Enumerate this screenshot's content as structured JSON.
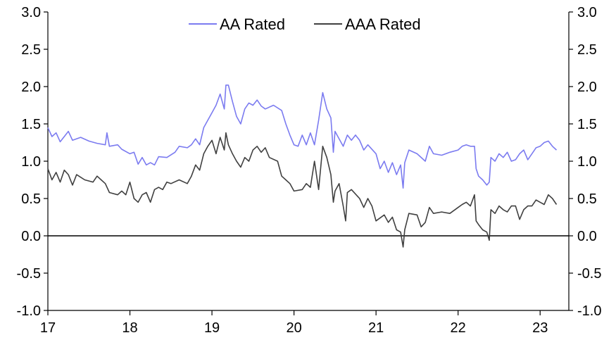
{
  "chart_data": {
    "type": "line",
    "title": "",
    "xlabel": "",
    "ylabel": "",
    "ylim": [
      -1.0,
      3.0
    ],
    "y_ticks": [
      "3.0",
      "2.5",
      "2.0",
      "1.5",
      "1.0",
      "0.5",
      "0.0",
      "-0.5",
      "-1.0"
    ],
    "y_tick_values": [
      3.0,
      2.5,
      2.0,
      1.5,
      1.0,
      0.5,
      0.0,
      -0.5,
      -1.0
    ],
    "x_ticks": [
      "17",
      "18",
      "19",
      "20",
      "21",
      "22",
      "23"
    ],
    "x_tick_values": [
      17,
      18,
      19,
      20,
      21,
      22,
      23
    ],
    "xlim": [
      17,
      23.35
    ],
    "y_axes": "left-and-right",
    "grid": false,
    "zero_line": true,
    "legend_position": "top",
    "series": [
      {
        "name": "AA Rated",
        "color": "#7b7bf0",
        "points": [
          [
            17.0,
            1.45
          ],
          [
            17.05,
            1.33
          ],
          [
            17.1,
            1.38
          ],
          [
            17.15,
            1.26
          ],
          [
            17.25,
            1.4
          ],
          [
            17.3,
            1.28
          ],
          [
            17.4,
            1.32
          ],
          [
            17.5,
            1.27
          ],
          [
            17.6,
            1.24
          ],
          [
            17.7,
            1.22
          ],
          [
            17.72,
            1.38
          ],
          [
            17.75,
            1.2
          ],
          [
            17.85,
            1.22
          ],
          [
            17.9,
            1.16
          ],
          [
            18.0,
            1.1
          ],
          [
            18.05,
            1.12
          ],
          [
            18.1,
            0.96
          ],
          [
            18.15,
            1.05
          ],
          [
            18.2,
            0.95
          ],
          [
            18.25,
            0.98
          ],
          [
            18.3,
            0.95
          ],
          [
            18.35,
            1.06
          ],
          [
            18.45,
            1.05
          ],
          [
            18.55,
            1.12
          ],
          [
            18.6,
            1.2
          ],
          [
            18.7,
            1.18
          ],
          [
            18.75,
            1.22
          ],
          [
            18.8,
            1.3
          ],
          [
            18.85,
            1.22
          ],
          [
            18.9,
            1.45
          ],
          [
            18.95,
            1.55
          ],
          [
            19.0,
            1.65
          ],
          [
            19.05,
            1.75
          ],
          [
            19.1,
            1.9
          ],
          [
            19.15,
            1.7
          ],
          [
            19.17,
            2.02
          ],
          [
            19.2,
            2.02
          ],
          [
            19.25,
            1.8
          ],
          [
            19.3,
            1.6
          ],
          [
            19.35,
            1.5
          ],
          [
            19.4,
            1.7
          ],
          [
            19.45,
            1.78
          ],
          [
            19.5,
            1.75
          ],
          [
            19.55,
            1.82
          ],
          [
            19.6,
            1.74
          ],
          [
            19.65,
            1.7
          ],
          [
            19.75,
            1.75
          ],
          [
            19.85,
            1.68
          ],
          [
            19.9,
            1.5
          ],
          [
            19.95,
            1.35
          ],
          [
            20.0,
            1.22
          ],
          [
            20.05,
            1.2
          ],
          [
            20.1,
            1.35
          ],
          [
            20.15,
            1.22
          ],
          [
            20.2,
            1.38
          ],
          [
            20.25,
            1.22
          ],
          [
            20.3,
            1.55
          ],
          [
            20.35,
            1.92
          ],
          [
            20.4,
            1.7
          ],
          [
            20.45,
            1.58
          ],
          [
            20.48,
            1.12
          ],
          [
            20.5,
            1.4
          ],
          [
            20.55,
            1.3
          ],
          [
            20.6,
            1.2
          ],
          [
            20.65,
            1.35
          ],
          [
            20.7,
            1.28
          ],
          [
            20.75,
            1.35
          ],
          [
            20.8,
            1.28
          ],
          [
            20.85,
            1.15
          ],
          [
            20.9,
            1.22
          ],
          [
            21.0,
            1.1
          ],
          [
            21.05,
            0.9
          ],
          [
            21.1,
            1.0
          ],
          [
            21.15,
            0.85
          ],
          [
            21.2,
            0.98
          ],
          [
            21.25,
            0.82
          ],
          [
            21.3,
            0.95
          ],
          [
            21.33,
            0.64
          ],
          [
            21.35,
            0.98
          ],
          [
            21.4,
            1.15
          ],
          [
            21.5,
            1.1
          ],
          [
            21.6,
            1.0
          ],
          [
            21.65,
            1.2
          ],
          [
            21.7,
            1.1
          ],
          [
            21.8,
            1.08
          ],
          [
            21.9,
            1.12
          ],
          [
            22.0,
            1.15
          ],
          [
            22.05,
            1.2
          ],
          [
            22.1,
            1.22
          ],
          [
            22.15,
            1.2
          ],
          [
            22.2,
            1.2
          ],
          [
            22.22,
            0.9
          ],
          [
            22.25,
            0.8
          ],
          [
            22.3,
            0.75
          ],
          [
            22.35,
            0.68
          ],
          [
            22.38,
            0.72
          ],
          [
            22.4,
            1.05
          ],
          [
            22.45,
            1.0
          ],
          [
            22.5,
            1.1
          ],
          [
            22.55,
            1.05
          ],
          [
            22.6,
            1.12
          ],
          [
            22.65,
            1.0
          ],
          [
            22.7,
            1.02
          ],
          [
            22.75,
            1.1
          ],
          [
            22.8,
            1.15
          ],
          [
            22.85,
            1.02
          ],
          [
            22.9,
            1.1
          ],
          [
            22.95,
            1.18
          ],
          [
            23.0,
            1.2
          ],
          [
            23.05,
            1.25
          ],
          [
            23.1,
            1.27
          ],
          [
            23.15,
            1.2
          ],
          [
            23.2,
            1.15
          ]
        ]
      },
      {
        "name": "AAA Rated",
        "color": "#404040",
        "points": [
          [
            17.0,
            0.9
          ],
          [
            17.05,
            0.75
          ],
          [
            17.1,
            0.85
          ],
          [
            17.15,
            0.72
          ],
          [
            17.2,
            0.88
          ],
          [
            17.25,
            0.82
          ],
          [
            17.3,
            0.68
          ],
          [
            17.35,
            0.82
          ],
          [
            17.45,
            0.75
          ],
          [
            17.55,
            0.72
          ],
          [
            17.6,
            0.8
          ],
          [
            17.65,
            0.75
          ],
          [
            17.7,
            0.7
          ],
          [
            17.75,
            0.58
          ],
          [
            17.85,
            0.55
          ],
          [
            17.9,
            0.6
          ],
          [
            17.95,
            0.55
          ],
          [
            18.0,
            0.72
          ],
          [
            18.05,
            0.5
          ],
          [
            18.1,
            0.45
          ],
          [
            18.15,
            0.55
          ],
          [
            18.2,
            0.58
          ],
          [
            18.25,
            0.45
          ],
          [
            18.3,
            0.62
          ],
          [
            18.35,
            0.65
          ],
          [
            18.4,
            0.62
          ],
          [
            18.45,
            0.72
          ],
          [
            18.5,
            0.7
          ],
          [
            18.6,
            0.75
          ],
          [
            18.7,
            0.7
          ],
          [
            18.75,
            0.8
          ],
          [
            18.8,
            0.95
          ],
          [
            18.85,
            0.88
          ],
          [
            18.9,
            1.1
          ],
          [
            18.95,
            1.2
          ],
          [
            19.0,
            1.28
          ],
          [
            19.05,
            1.1
          ],
          [
            19.1,
            1.32
          ],
          [
            19.15,
            1.15
          ],
          [
            19.17,
            1.38
          ],
          [
            19.2,
            1.22
          ],
          [
            19.25,
            1.1
          ],
          [
            19.3,
            1.0
          ],
          [
            19.35,
            0.92
          ],
          [
            19.4,
            1.05
          ],
          [
            19.45,
            1.0
          ],
          [
            19.5,
            1.15
          ],
          [
            19.55,
            1.2
          ],
          [
            19.6,
            1.12
          ],
          [
            19.65,
            1.18
          ],
          [
            19.7,
            1.05
          ],
          [
            19.8,
            1.0
          ],
          [
            19.85,
            0.8
          ],
          [
            19.9,
            0.75
          ],
          [
            19.95,
            0.7
          ],
          [
            20.0,
            0.6
          ],
          [
            20.1,
            0.62
          ],
          [
            20.15,
            0.7
          ],
          [
            20.2,
            0.65
          ],
          [
            20.25,
            1.0
          ],
          [
            20.3,
            0.62
          ],
          [
            20.35,
            1.2
          ],
          [
            20.4,
            1.05
          ],
          [
            20.45,
            0.82
          ],
          [
            20.48,
            0.45
          ],
          [
            20.5,
            0.6
          ],
          [
            20.55,
            0.7
          ],
          [
            20.6,
            0.4
          ],
          [
            20.63,
            0.2
          ],
          [
            20.65,
            0.58
          ],
          [
            20.7,
            0.62
          ],
          [
            20.8,
            0.5
          ],
          [
            20.85,
            0.38
          ],
          [
            20.9,
            0.5
          ],
          [
            20.95,
            0.4
          ],
          [
            21.0,
            0.2
          ],
          [
            21.1,
            0.28
          ],
          [
            21.15,
            0.18
          ],
          [
            21.2,
            0.25
          ],
          [
            21.25,
            0.08
          ],
          [
            21.3,
            0.05
          ],
          [
            21.33,
            -0.15
          ],
          [
            21.35,
            0.08
          ],
          [
            21.4,
            0.3
          ],
          [
            21.5,
            0.28
          ],
          [
            21.55,
            0.12
          ],
          [
            21.6,
            0.18
          ],
          [
            21.65,
            0.38
          ],
          [
            21.7,
            0.3
          ],
          [
            21.8,
            0.32
          ],
          [
            21.9,
            0.3
          ],
          [
            22.0,
            0.38
          ],
          [
            22.05,
            0.42
          ],
          [
            22.1,
            0.45
          ],
          [
            22.15,
            0.4
          ],
          [
            22.2,
            0.55
          ],
          [
            22.22,
            0.2
          ],
          [
            22.25,
            0.15
          ],
          [
            22.3,
            0.08
          ],
          [
            22.35,
            0.05
          ],
          [
            22.38,
            -0.06
          ],
          [
            22.4,
            0.35
          ],
          [
            22.45,
            0.3
          ],
          [
            22.5,
            0.4
          ],
          [
            22.55,
            0.35
          ],
          [
            22.6,
            0.32
          ],
          [
            22.65,
            0.4
          ],
          [
            22.7,
            0.4
          ],
          [
            22.75,
            0.22
          ],
          [
            22.8,
            0.35
          ],
          [
            22.85,
            0.4
          ],
          [
            22.9,
            0.4
          ],
          [
            22.95,
            0.48
          ],
          [
            23.0,
            0.45
          ],
          [
            23.05,
            0.42
          ],
          [
            23.1,
            0.55
          ],
          [
            23.15,
            0.5
          ],
          [
            23.2,
            0.42
          ]
        ]
      }
    ]
  }
}
